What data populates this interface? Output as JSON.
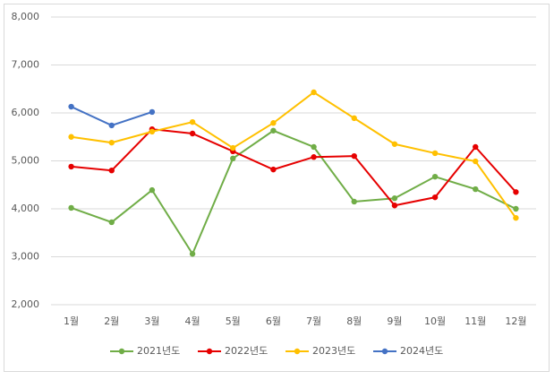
{
  "chart_data": {
    "type": "line",
    "categories": [
      "1월",
      "2월",
      "3월",
      "4월",
      "5월",
      "6월",
      "7월",
      "8월",
      "9월",
      "10월",
      "11월",
      "12월"
    ],
    "series": [
      {
        "name": "2021년도",
        "color": "#70ad47",
        "values": [
          4020,
          3720,
          4390,
          3060,
          5050,
          5630,
          5290,
          4150,
          4220,
          4670,
          4410,
          4000
        ]
      },
      {
        "name": "2022년도",
        "color": "#e60000",
        "values": [
          4880,
          4800,
          5660,
          5570,
          5200,
          4820,
          5080,
          5100,
          4070,
          4240,
          5290,
          4350
        ]
      },
      {
        "name": "2023년도",
        "color": "#ffc000",
        "values": [
          5500,
          5380,
          5610,
          5810,
          5270,
          5790,
          6430,
          5890,
          5350,
          5160,
          4990,
          3810
        ]
      },
      {
        "name": "2024년도",
        "color": "#4472c4",
        "values": [
          6130,
          5740,
          6020,
          null,
          null,
          null,
          null,
          null,
          null,
          null,
          null,
          null
        ]
      }
    ],
    "ylim": [
      2000,
      8000
    ],
    "yticks": [
      {
        "value": 2000,
        "label": "2,000"
      },
      {
        "value": 3000,
        "label": "3,000"
      },
      {
        "value": 4000,
        "label": "4,000"
      },
      {
        "value": 5000,
        "label": "5,000"
      },
      {
        "value": 6000,
        "label": "6,000"
      },
      {
        "value": 7000,
        "label": "7,000"
      },
      {
        "value": 8000,
        "label": "8,000"
      }
    ],
    "grid": true,
    "legend": "bottom"
  }
}
